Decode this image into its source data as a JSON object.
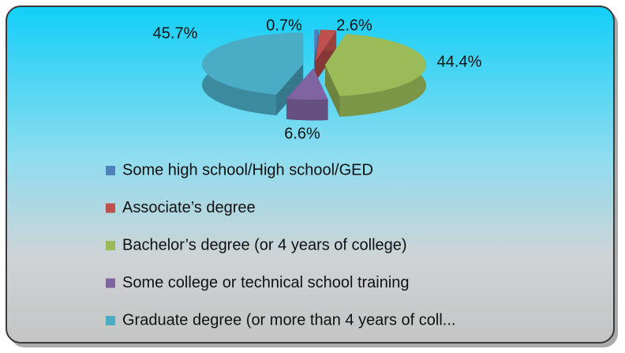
{
  "chart_data": {
    "type": "pie",
    "categories": [
      "Some high school/High school/GED",
      "Associate’s degree",
      "Bachelor’s degree (or 4 years of college)",
      "Some college or technical school training",
      "Graduate degree (or more than 4 years of coll..."
    ],
    "values": [
      0.7,
      2.6,
      44.4,
      6.6,
      45.7
    ],
    "value_labels": [
      "0.7%",
      "2.6%",
      "44.4%",
      "6.6%",
      "45.7%"
    ],
    "colors": [
      "#4f81bd",
      "#c0504d",
      "#9bbb59",
      "#8064a2",
      "#4bacc6"
    ],
    "legend": "bottom"
  }
}
